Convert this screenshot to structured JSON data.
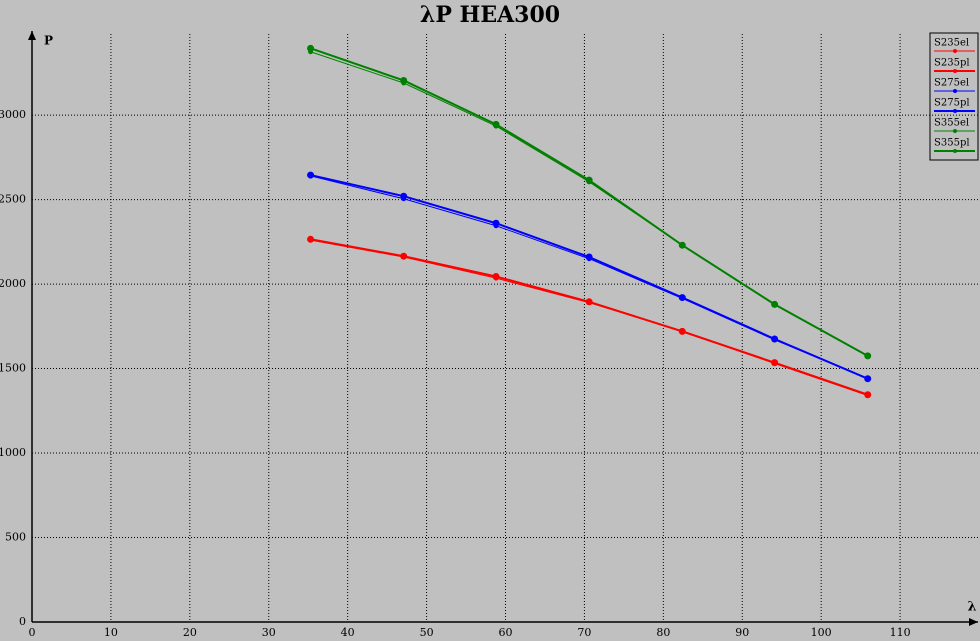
{
  "chart_data": {
    "type": "line",
    "title": "λP HEA300",
    "xlabel": "λ",
    "ylabel": "P",
    "x": [
      35.3,
      47.1,
      58.8,
      70.6,
      82.4,
      94.1,
      105.9
    ],
    "series": [
      {
        "name": "S235el",
        "color": "#ff0000",
        "width": 1,
        "values": [
          2260,
          2160,
          2035,
          1890,
          1720,
          1530,
          1340
        ]
      },
      {
        "name": "S235pl",
        "color": "#ff0000",
        "width": 2,
        "values": [
          2265,
          2165,
          2045,
          1895,
          1720,
          1535,
          1345
        ]
      },
      {
        "name": "S275el",
        "color": "#0000ff",
        "width": 1,
        "values": [
          2640,
          2505,
          2345,
          2150,
          1915,
          1670,
          1440
        ]
      },
      {
        "name": "S275pl",
        "color": "#0000ff",
        "width": 2,
        "values": [
          2645,
          2520,
          2360,
          2160,
          1920,
          1675,
          1440
        ]
      },
      {
        "name": "S355el",
        "color": "#008000",
        "width": 1,
        "values": [
          3375,
          3190,
          2935,
          2605,
          2230,
          1880,
          1575
        ]
      },
      {
        "name": "S355pl",
        "color": "#008000",
        "width": 2,
        "values": [
          3395,
          3205,
          2945,
          2615,
          2230,
          1880,
          1575
        ]
      }
    ],
    "xlim": [
      0,
      120
    ],
    "xticks": [
      0,
      10,
      20,
      30,
      40,
      50,
      60,
      70,
      80,
      90,
      100,
      110
    ],
    "ylim": [
      0,
      3480
    ],
    "yticks": [
      0,
      500,
      1000,
      1500,
      2000,
      2500,
      3000
    ],
    "grid": true,
    "legend": "top-right"
  }
}
